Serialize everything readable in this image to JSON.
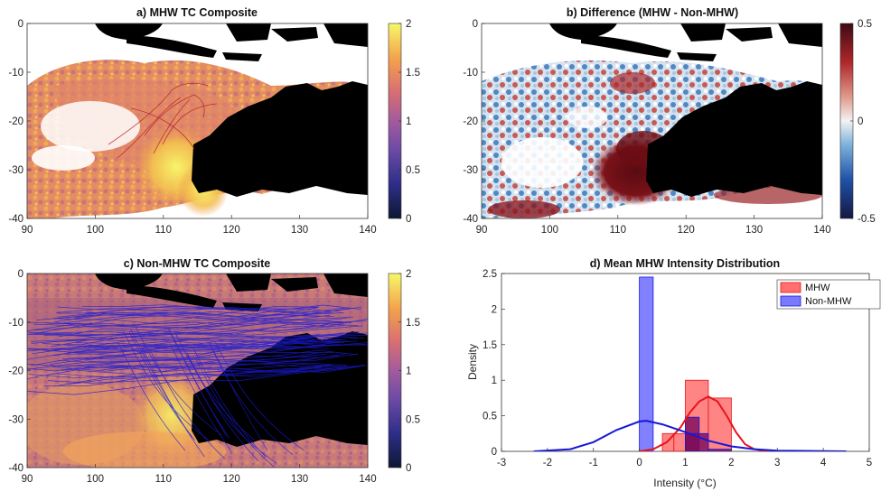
{
  "panels": {
    "a": {
      "title": "a) MHW TC Composite",
      "colorbar_ticks": [
        "0",
        "0.5",
        "1",
        "1.5",
        "2"
      ]
    },
    "b": {
      "title": "b) Difference (MHW - Non-MHW)",
      "colorbar_ticks": [
        "-0.5",
        "0",
        "0.5"
      ]
    },
    "c": {
      "title": "c) Non-MHW TC Composite",
      "colorbar_ticks": [
        "0",
        "0.5",
        "1",
        "1.5",
        "2"
      ]
    },
    "d": {
      "title": "d) Mean MHW Intensity Distribution",
      "xlabel": "Intensity (°C)",
      "ylabel": "Density"
    }
  },
  "map_axes": {
    "x_ticks": [
      "90",
      "100",
      "110",
      "120",
      "130",
      "140"
    ],
    "y_ticks": [
      "0",
      "-10",
      "-20",
      "-30",
      "-40"
    ]
  },
  "colors": {
    "mhw": "#ff6f6f",
    "mhw_line": "#e8141a",
    "non_mhw": "#7a7aff",
    "non_mhw_line": "#1717d9",
    "overlap": "#7a0a5a",
    "land": "#000000",
    "track": "#1b1bd6",
    "mhw_track": "#b4222a"
  },
  "chart_data": [
    {
      "type": "heatmap",
      "title": "a) MHW TC Composite",
      "xlim": [
        90,
        140
      ],
      "ylim": [
        -40,
        0
      ],
      "colorbar_range": [
        0,
        2
      ],
      "colormap": "thermal"
    },
    {
      "type": "heatmap",
      "title": "b) Difference (MHW - Non-MHW)",
      "xlim": [
        90,
        140
      ],
      "ylim": [
        -40,
        0
      ],
      "colorbar_range": [
        -0.5,
        0.5
      ],
      "colormap": "diverging-blue-red"
    },
    {
      "type": "heatmap",
      "title": "c) Non-MHW TC Composite",
      "xlim": [
        90,
        140
      ],
      "ylim": [
        -40,
        0
      ],
      "colorbar_range": [
        0,
        2
      ],
      "colormap": "thermal"
    },
    {
      "type": "bar",
      "title": "d) Mean MHW Intensity Distribution",
      "xlabel": "Intensity (°C)",
      "ylabel": "Density",
      "xlim": [
        -3,
        5
      ],
      "ylim": [
        0,
        2.5
      ],
      "x_ticks": [
        "-3",
        "-2",
        "-1",
        "0",
        "1",
        "2",
        "3",
        "4",
        "5"
      ],
      "y_ticks": [
        "0",
        "0.5",
        "1",
        "1.5",
        "2",
        "2.5"
      ],
      "legend": {
        "position": "top-right",
        "entries": [
          "MHW",
          "Non-MHW"
        ]
      },
      "series": [
        {
          "name": "MHW",
          "bins": [
            [
              0.5,
              0.75,
              0.25
            ],
            [
              0.75,
              1.0,
              0.25
            ],
            [
              1.0,
              1.5,
              1.0
            ],
            [
              1.5,
              2.0,
              0.75
            ]
          ],
          "curve": [
            [
              0.0,
              0.0
            ],
            [
              0.3,
              0.03
            ],
            [
              0.6,
              0.13
            ],
            [
              0.9,
              0.34
            ],
            [
              1.1,
              0.55
            ],
            [
              1.3,
              0.7
            ],
            [
              1.5,
              0.77
            ],
            [
              1.7,
              0.7
            ],
            [
              1.9,
              0.5
            ],
            [
              2.1,
              0.27
            ],
            [
              2.3,
              0.1
            ],
            [
              2.5,
              0.03
            ],
            [
              2.8,
              0.0
            ]
          ]
        },
        {
          "name": "Non-MHW",
          "bins": [
            [
              0.0,
              0.3,
              2.45
            ],
            [
              1.0,
              1.3,
              0.48
            ],
            [
              1.0,
              1.5,
              0.25
            ],
            [
              1.5,
              2.0,
              0.03
            ]
          ],
          "curve": [
            [
              -2.3,
              0.0
            ],
            [
              -1.5,
              0.03
            ],
            [
              -1.0,
              0.13
            ],
            [
              -0.5,
              0.3
            ],
            [
              0.0,
              0.42
            ],
            [
              0.15,
              0.43
            ],
            [
              0.5,
              0.38
            ],
            [
              1.0,
              0.27
            ],
            [
              1.5,
              0.15
            ],
            [
              2.0,
              0.07
            ],
            [
              2.5,
              0.03
            ],
            [
              3.0,
              0.01
            ],
            [
              4.5,
              0.0
            ]
          ]
        }
      ]
    }
  ]
}
